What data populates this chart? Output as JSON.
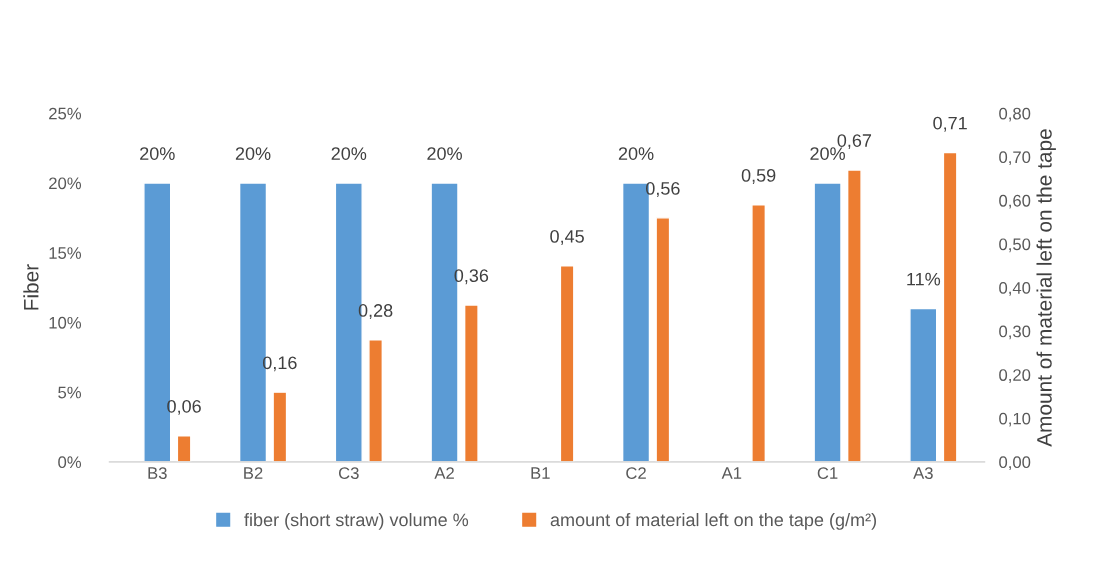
{
  "chart_data": {
    "type": "bar",
    "categories": [
      "B3",
      "B2",
      "C3",
      "A2",
      "B1",
      "C2",
      "A1",
      "C1",
      "A3"
    ],
    "ylabel": "Fiber",
    "y2label": "Amount of material left on the tape",
    "ylim": [
      0,
      25
    ],
    "yticks": [
      {
        "value": 0,
        "label": "0%"
      },
      {
        "value": 5,
        "label": "5%"
      },
      {
        "value": 10,
        "label": "10%"
      },
      {
        "value": 15,
        "label": "15%"
      },
      {
        "value": 20,
        "label": "20%"
      },
      {
        "value": 25,
        "label": "25%"
      }
    ],
    "y2lim": [
      0,
      0.8
    ],
    "y2ticks": [
      {
        "value": 0,
        "label": "0,00"
      },
      {
        "value": 0.1,
        "label": "0,10"
      },
      {
        "value": 0.2,
        "label": "0,20"
      },
      {
        "value": 0.3,
        "label": "0,30"
      },
      {
        "value": 0.4,
        "label": "0,40"
      },
      {
        "value": 0.5,
        "label": "0,50"
      },
      {
        "value": 0.6,
        "label": "0,60"
      },
      {
        "value": 0.7,
        "label": "0,70"
      },
      {
        "value": 0.8,
        "label": "0,80"
      }
    ],
    "series": [
      {
        "name": "fiber (short straw) volume %",
        "color": "#5b9bd5",
        "values": [
          20,
          20,
          20,
          20,
          null,
          20,
          null,
          20,
          11
        ],
        "value_labels": [
          "20%",
          "20%",
          "20%",
          "20%",
          null,
          "20%",
          null,
          "20%",
          "11%"
        ]
      },
      {
        "name": "amount of material left on the tape (g/m²)",
        "color": "#ed7d31",
        "axis": "y2",
        "values": [
          0.06,
          0.16,
          0.28,
          0.36,
          0.45,
          0.56,
          0.59,
          0.67,
          0.71
        ],
        "value_labels": [
          "0,06",
          "0,16",
          "0,28",
          "0,36",
          "0,45",
          "0,56",
          "0,59",
          "0,67",
          "0,71"
        ]
      }
    ],
    "legend": "bottom",
    "grid": false
  }
}
